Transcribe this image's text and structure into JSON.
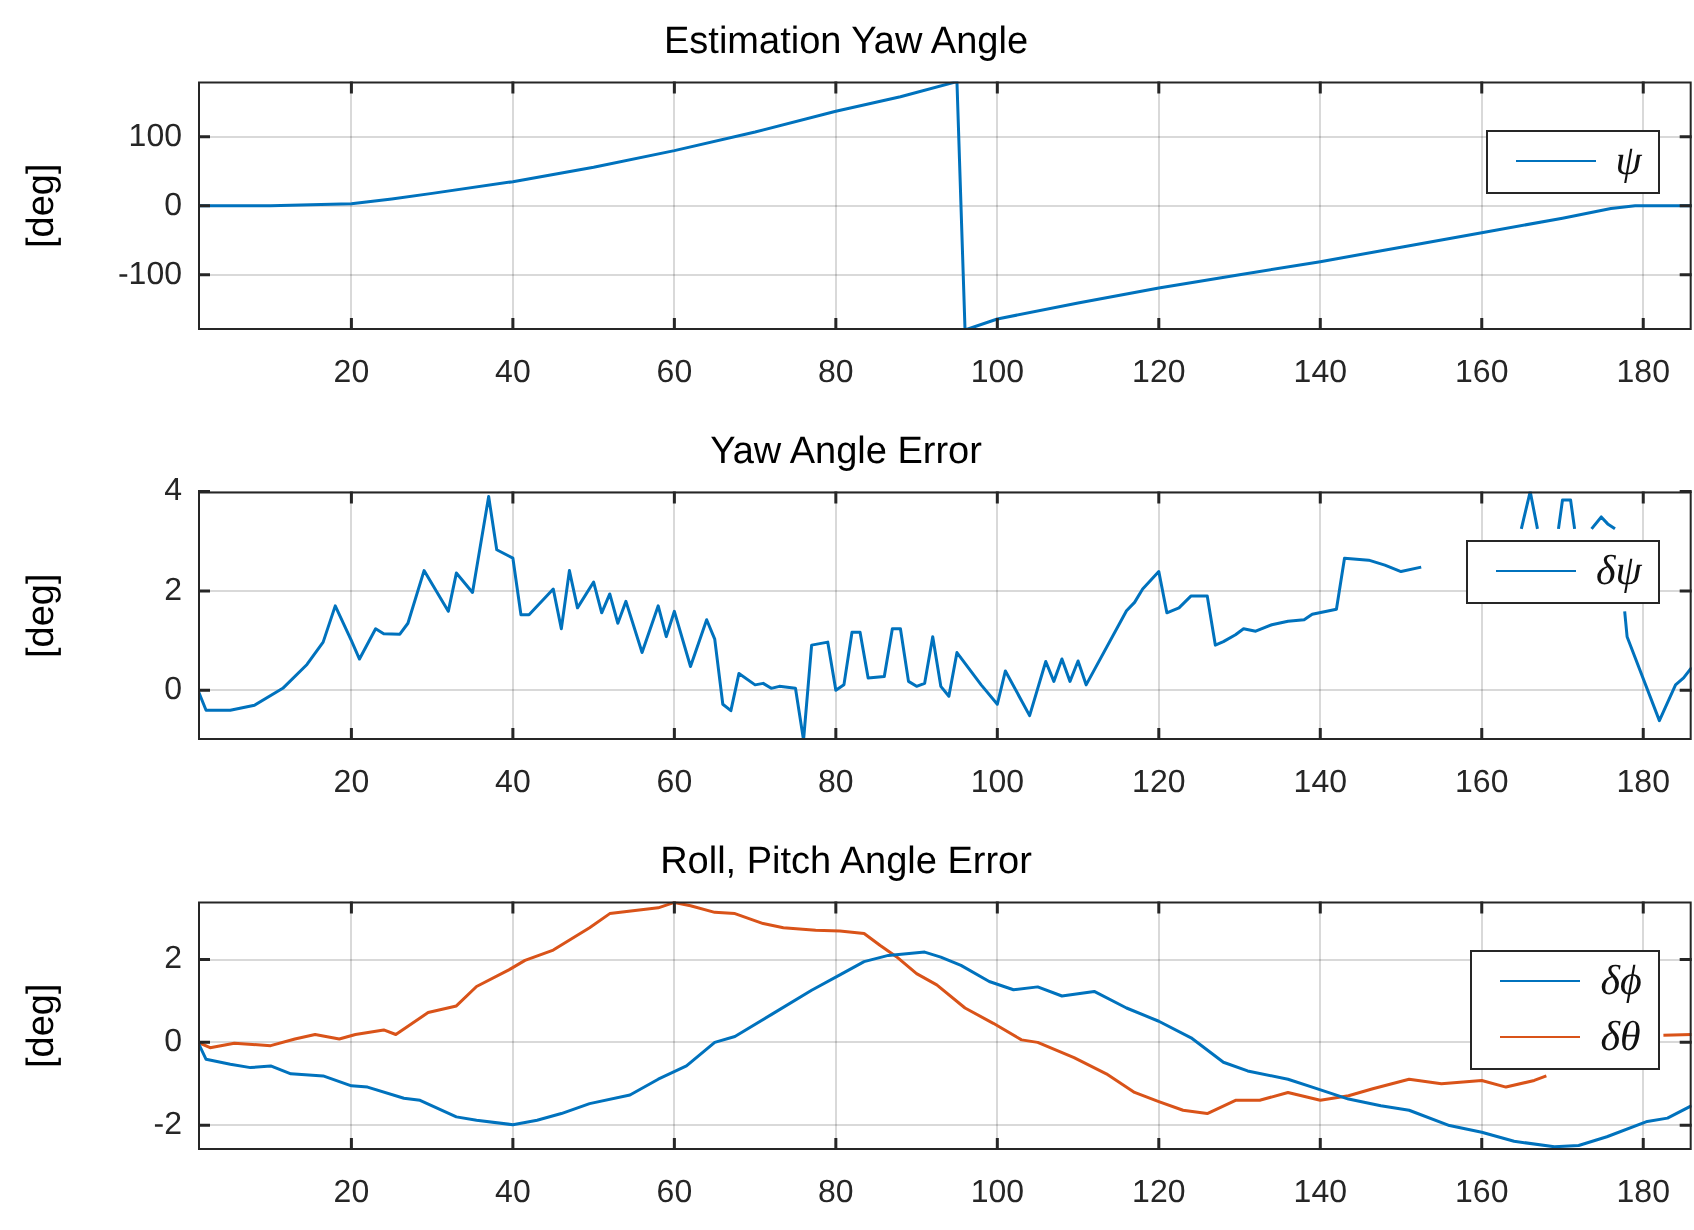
{
  "chart_data": [
    {
      "type": "line",
      "title": "Estimation Yaw Angle",
      "ylabel": "[deg]",
      "xlim": [
        1,
        186
      ],
      "xticks": [
        20,
        40,
        60,
        80,
        100,
        120,
        140,
        160,
        180
      ],
      "ylim": [
        -180,
        180
      ],
      "yticks": [
        -100,
        0,
        100
      ],
      "grid": true,
      "legend": "top right",
      "series": [
        {
          "name": "ψ",
          "color": "#0072bd",
          "x": [
            1,
            10,
            20,
            25,
            30,
            40,
            50,
            60,
            70,
            80,
            88,
            95,
            96,
            100,
            110,
            120,
            130,
            140,
            150,
            160,
            170,
            176,
            179,
            186
          ],
          "values": [
            0,
            0,
            3,
            10,
            18,
            35,
            56,
            80,
            107,
            137,
            158,
            180,
            -180,
            -164,
            -141,
            -119,
            -100,
            -81,
            -60,
            -39,
            -18,
            -4,
            0,
            0
          ]
        }
      ]
    },
    {
      "type": "line",
      "title": "Yaw Angle Error",
      "ylabel": "[deg]",
      "xlim": [
        1,
        186
      ],
      "xticks": [
        20,
        40,
        60,
        80,
        100,
        120,
        140,
        160,
        180
      ],
      "ylim": [
        -1,
        4
      ],
      "yticks": [
        0,
        2,
        4
      ],
      "grid": true,
      "legend": "top right",
      "series": [
        {
          "name": "δψ",
          "color": "#0072bd",
          "x": [
            1,
            2,
            5,
            8,
            11.5,
            14.5,
            16.5,
            18,
            20,
            21,
            23,
            24,
            26,
            27,
            29,
            32,
            33,
            35,
            37,
            38,
            40,
            41,
            42,
            45,
            46,
            47,
            48,
            50,
            51,
            52,
            53,
            54,
            56,
            58,
            59,
            60,
            62,
            64,
            65,
            66,
            67,
            68,
            70,
            71,
            72,
            73,
            75,
            76,
            77,
            79,
            80,
            81,
            82,
            83,
            84,
            86,
            87,
            88,
            89,
            90,
            91,
            92,
            93,
            94,
            95,
            98,
            100,
            101,
            104,
            106,
            107,
            108,
            109,
            110,
            111,
            116,
            117,
            118,
            120,
            121,
            122.5,
            124,
            126,
            127,
            128,
            129.5,
            130.5,
            132,
            134,
            136,
            138,
            139,
            142,
            143,
            146,
            148,
            150,
            152.5,
            153,
            164.9,
            166,
            166.9,
            167,
            169.5,
            170,
            171,
            171.5,
            172,
            173.6,
            174.8,
            175.6,
            176.5,
            177,
            177.7,
            178,
            182,
            184,
            185,
            186
          ],
          "values": [
            0,
            -0.4,
            -0.4,
            -0.3,
            0.04,
            0.52,
            0.97,
            1.7,
            1.0,
            0.63,
            1.24,
            1.14,
            1.13,
            1.35,
            2.41,
            1.59,
            2.36,
            1.97,
            3.9,
            2.83,
            2.66,
            1.52,
            1.52,
            2.04,
            1.24,
            2.41,
            1.66,
            2.18,
            1.56,
            1.94,
            1.35,
            1.79,
            0.76,
            1.7,
            1.08,
            1.59,
            0.48,
            1.42,
            1.03,
            -0.28,
            -0.41,
            0.34,
            0.11,
            0.14,
            0.04,
            0.08,
            0.04,
            -1,
            0.91,
            0.97,
            0,
            0.11,
            1.17,
            1.17,
            0.25,
            0.28,
            1.24,
            1.24,
            0.18,
            0.08,
            0.14,
            1.08,
            0.08,
            -0.12,
            0.76,
            0.11,
            -0.28,
            0.39,
            -0.51,
            0.58,
            0.18,
            0.63,
            0.18,
            0.59,
            0.11,
            1.6,
            1.77,
            2.04,
            2.39,
            1.56,
            1.66,
            1.9,
            1.9,
            0.91,
            0.98,
            1.12,
            1.24,
            1.19,
            1.32,
            1.39,
            1.42,
            1.53,
            1.63,
            2.66,
            2.62,
            2.52,
            2.39,
            2.48,
            null,
            3.25,
            4,
            3.25,
            null,
            3.25,
            3.83,
            3.83,
            3.25,
            null,
            3.25,
            3.49,
            3.35,
            3.25,
            null,
            1.59,
            1.08,
            -0.61,
            0.11,
            0.25,
            0.46
          ]
        }
      ]
    },
    {
      "type": "line",
      "title": "Roll, Pitch Angle Error",
      "ylabel": "[deg]",
      "xlim": [
        1,
        186
      ],
      "xticks": [
        20,
        40,
        60,
        80,
        100,
        120,
        140,
        160,
        180
      ],
      "ylim": [
        -2.6,
        3.4
      ],
      "yticks": [
        -2,
        0,
        2
      ],
      "grid": true,
      "legend": "top right",
      "series": [
        {
          "name": "δϕ",
          "color": "#0072bd",
          "x": [
            1,
            2,
            5,
            7.5,
            10,
            12.5,
            16.5,
            20,
            22,
            26.5,
            28.5,
            33,
            35.5,
            40,
            43,
            46,
            49.5,
            54.5,
            58,
            61.5,
            65,
            67.5,
            72,
            77,
            80.5,
            83.5,
            86.5,
            91,
            93,
            95.5,
            99,
            102,
            105,
            108,
            112,
            116,
            120,
            124,
            128,
            131,
            136,
            139,
            143.5,
            147.5,
            151,
            156,
            160,
            164,
            169,
            172,
            175.5,
            180.5,
            183,
            186
          ],
          "values": [
            0,
            -0.41,
            -0.53,
            -0.61,
            -0.57,
            -0.76,
            -0.81,
            -1.05,
            -1.08,
            -1.35,
            -1.4,
            -1.8,
            -1.88,
            -1.99,
            -1.88,
            -1.72,
            -1.48,
            -1.27,
            -0.89,
            -0.57,
            0,
            0.14,
            0.67,
            1.26,
            1.63,
            1.95,
            2.1,
            2.18,
            2.06,
            1.86,
            1.47,
            1.27,
            1.34,
            1.12,
            1.23,
            0.83,
            0.51,
            0.11,
            -0.48,
            -0.69,
            -0.89,
            -1.08,
            -1.37,
            -1.53,
            -1.64,
            -2.01,
            -2.17,
            -2.39,
            -2.52,
            -2.49,
            -2.28,
            -1.91,
            -1.83,
            -1.53
          ]
        },
        {
          "name": "δθ",
          "color": "#d95319",
          "x": [
            1,
            2.5,
            5.5,
            10,
            13,
            15.5,
            18.5,
            20.5,
            24,
            25.5,
            29.5,
            33,
            35.5,
            39.5,
            41.5,
            45,
            49.5,
            52,
            58,
            60,
            62,
            65,
            67.5,
            71,
            73.5,
            77.5,
            80.5,
            83.5,
            85.5,
            87.5,
            90,
            92.5,
            96,
            99.5,
            103,
            105,
            109.5,
            113.5,
            117,
            120,
            123,
            126,
            129.5,
            132.5,
            136,
            140,
            143.5,
            146.5,
            151,
            155,
            160,
            163,
            166.5,
            168,
            175,
            182.5,
            186
          ],
          "values": [
            0,
            -0.13,
            -0.02,
            -0.08,
            0.08,
            0.19,
            0.08,
            0.19,
            0.3,
            0.19,
            0.72,
            0.88,
            1.35,
            1.75,
            1.98,
            2.23,
            2.77,
            3.11,
            3.25,
            3.38,
            3.3,
            3.14,
            3.11,
            2.87,
            2.77,
            2.71,
            2.69,
            2.63,
            2.34,
            2.07,
            1.66,
            1.39,
            0.83,
            0.46,
            0.06,
            0,
            -0.37,
            -0.76,
            -1.21,
            -1.43,
            -1.64,
            -1.72,
            -1.4,
            -1.4,
            -1.21,
            -1.4,
            -1.29,
            -1.12,
            -0.89,
            -1.0,
            -0.92,
            -1.08,
            -0.92,
            -0.81,
            null,
            0.17,
            0.19
          ]
        }
      ]
    }
  ]
}
